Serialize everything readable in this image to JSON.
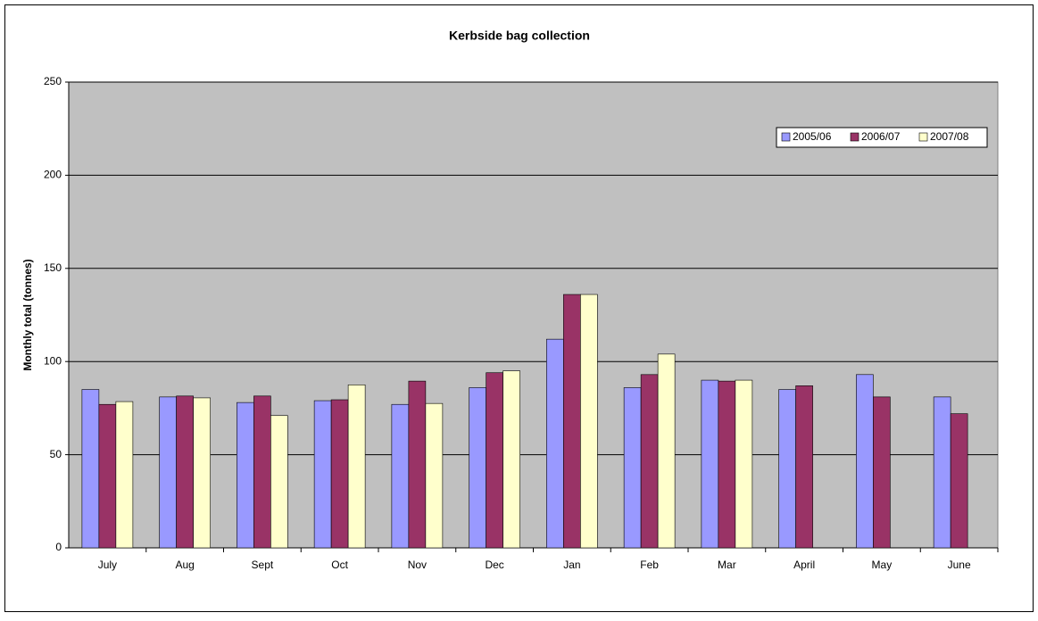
{
  "chart_data": {
    "type": "bar",
    "title": "Kerbside bag collection",
    "y_label": "Monthly total (tonnes)",
    "categories": [
      "July",
      "Aug",
      "Sept",
      "Oct",
      "Nov",
      "Dec",
      "Jan",
      "Feb",
      "Mar",
      "April",
      "May",
      "June"
    ],
    "series": [
      {
        "name": "2005/06",
        "color": "#9999ff",
        "values": [
          85,
          81,
          78,
          79,
          77,
          86,
          112,
          86,
          90,
          85,
          93,
          81
        ]
      },
      {
        "name": "2006/07",
        "color": "#993366",
        "values": [
          77,
          81.5,
          81.5,
          79.5,
          89.5,
          94,
          136,
          93,
          89.5,
          87,
          81,
          72
        ]
      },
      {
        "name": "2007/08",
        "color": "#ffffcc",
        "values": [
          78.5,
          80.5,
          71,
          87.5,
          77.5,
          95,
          136,
          104,
          90,
          null,
          null,
          null
        ]
      }
    ],
    "ylim": [
      0,
      250
    ],
    "yticks": [
      0,
      50,
      100,
      150,
      200,
      250
    ],
    "grid": true,
    "legend": "top-right"
  }
}
